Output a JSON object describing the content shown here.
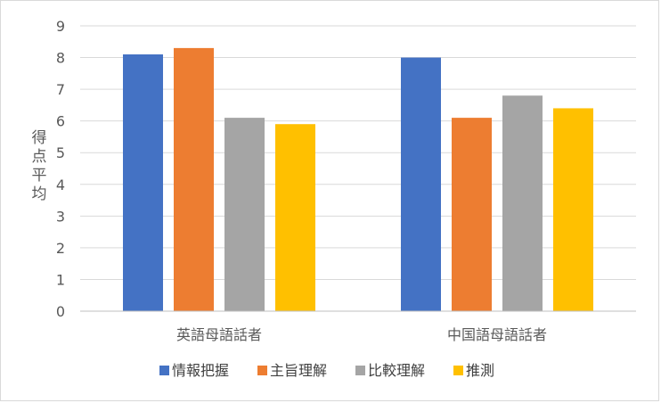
{
  "chart_data": {
    "type": "bar",
    "categories": [
      "英語母語話者",
      "中国語母語話者"
    ],
    "series": [
      {
        "name": "情報把握",
        "values": [
          8.1,
          8.0
        ],
        "color": "#4472c4"
      },
      {
        "name": "主旨理解",
        "values": [
          8.3,
          6.1
        ],
        "color": "#ed7d31"
      },
      {
        "name": "比較理解",
        "values": [
          6.1,
          6.8
        ],
        "color": "#a5a5a5"
      },
      {
        "name": "推測",
        "values": [
          5.9,
          6.4
        ],
        "color": "#ffc000"
      }
    ],
    "title": "",
    "xlabel": "",
    "ylabel": "得点平均",
    "ylim": [
      0,
      9
    ],
    "yticks": [
      "0",
      "1",
      "2",
      "3",
      "4",
      "5",
      "6",
      "7",
      "8",
      "9"
    ],
    "grid": true,
    "legend_position": "bottom"
  }
}
